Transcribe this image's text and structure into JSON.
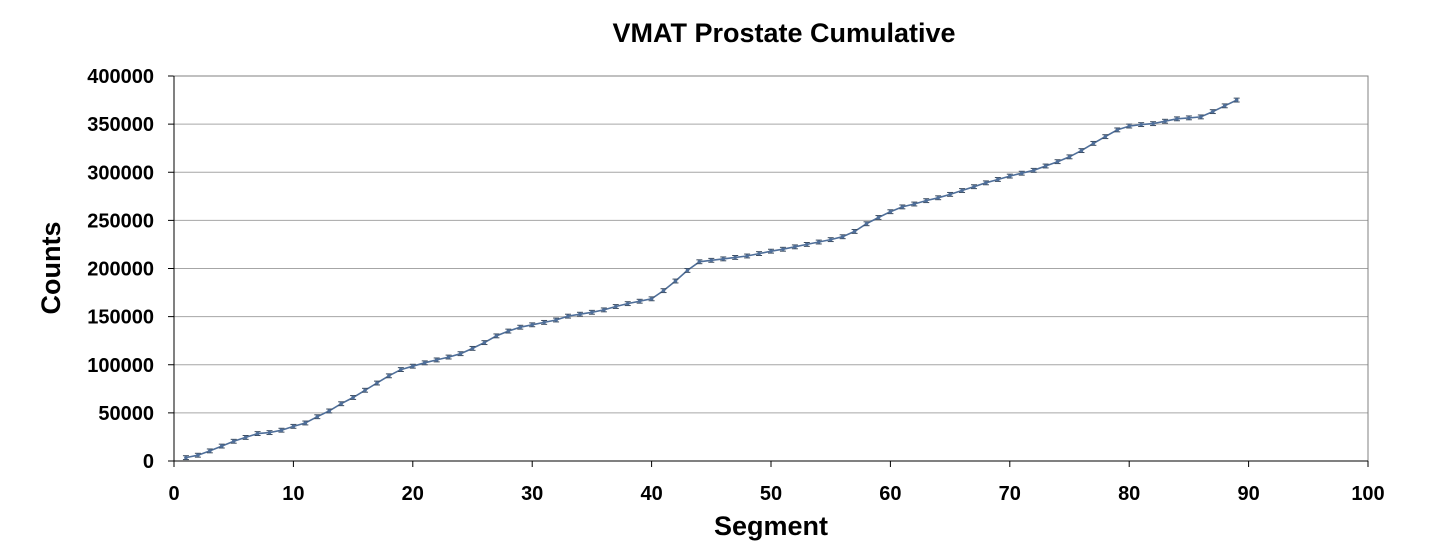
{
  "chart_data": {
    "type": "line",
    "title": "VMAT Prostate Cumulative",
    "xlabel": "Segment",
    "ylabel": "Counts",
    "xlim": [
      0,
      100
    ],
    "ylim": [
      0,
      400000
    ],
    "x_ticks": [
      "0",
      "10",
      "20",
      "30",
      "40",
      "50",
      "60",
      "70",
      "80",
      "90",
      "100"
    ],
    "y_ticks": [
      "0",
      "50000",
      "100000",
      "150000",
      "200000",
      "250000",
      "300000",
      "350000",
      "400000"
    ],
    "grid": "horizontal",
    "legend": "none",
    "error_bars": true,
    "series": [
      {
        "x": [
          1,
          2,
          3,
          4,
          5,
          6,
          7,
          8,
          9,
          10,
          11,
          12,
          13,
          14,
          15,
          16,
          17,
          18,
          19,
          20,
          21,
          22,
          23,
          24,
          25,
          26,
          27,
          28,
          29,
          30,
          31,
          32,
          33,
          34,
          35,
          36,
          37,
          38,
          39,
          40,
          41,
          42,
          43,
          44,
          45,
          46,
          47,
          48,
          49,
          50,
          51,
          52,
          53,
          54,
          55,
          56,
          57,
          58,
          59,
          60,
          61,
          62,
          63,
          64,
          65,
          66,
          67,
          68,
          69,
          70,
          71,
          72,
          73,
          74,
          75,
          76,
          77,
          78,
          79,
          80,
          81,
          82,
          83,
          84,
          85,
          86,
          87,
          88,
          89
        ],
        "y": [
          3500,
          6000,
          10500,
          15500,
          20500,
          24500,
          28500,
          29500,
          32000,
          36000,
          39500,
          46000,
          52000,
          59500,
          66000,
          73500,
          81000,
          88500,
          95000,
          98500,
          102000,
          105000,
          108000,
          111500,
          117000,
          123000,
          130000,
          135000,
          139000,
          141500,
          144000,
          146500,
          150500,
          152500,
          154500,
          157000,
          160500,
          163500,
          166000,
          168500,
          177000,
          187000,
          198000,
          207000,
          208500,
          210000,
          211500,
          213000,
          215500,
          218000,
          220000,
          222500,
          225000,
          227500,
          230000,
          233000,
          238500,
          246500,
          253000,
          259000,
          264000,
          267000,
          270500,
          273500,
          277000,
          281000,
          285000,
          289000,
          292500,
          296000,
          299000,
          302000,
          306500,
          311000,
          316000,
          322500,
          330000,
          337000,
          344000,
          348000,
          349500,
          350500,
          353000,
          355500,
          356500,
          357500,
          363000,
          369000,
          375000
        ],
        "error": 2000
      }
    ],
    "colors": {
      "line": "#4f6f9a",
      "errorbar": "#3a4a5e",
      "grid": "#a6a6a6",
      "axis": "#000000",
      "plot_border": "#808080"
    }
  }
}
